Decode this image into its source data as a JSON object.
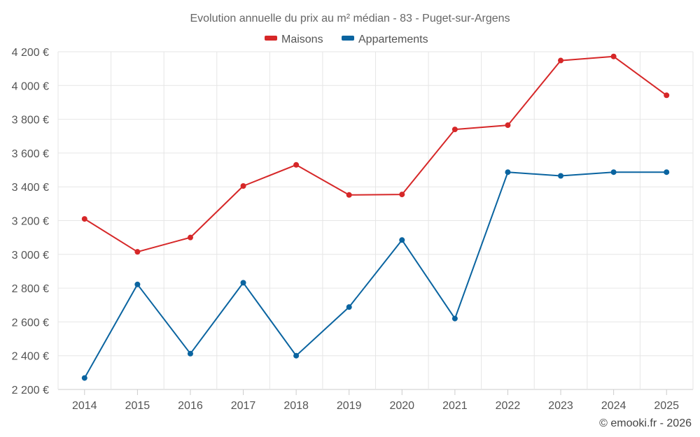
{
  "chart_data": {
    "type": "line",
    "title": "Evolution annuelle du prix au m² médian - 83 - Puget-sur-Argens",
    "xlabel": "",
    "ylabel": "",
    "categories": [
      "2014",
      "2015",
      "2016",
      "2017",
      "2018",
      "2019",
      "2020",
      "2021",
      "2022",
      "2023",
      "2024",
      "2025"
    ],
    "ylim": [
      2200,
      4200
    ],
    "yticks": [
      2200,
      2400,
      2600,
      2800,
      3000,
      3200,
      3400,
      3600,
      3800,
      4000,
      4200
    ],
    "ytick_labels": [
      "2 200 €",
      "2 400 €",
      "2 600 €",
      "2 800 €",
      "3 000 €",
      "3 200 €",
      "3 400 €",
      "3 600 €",
      "3 800 €",
      "4 000 €",
      "4 200 €"
    ],
    "grid": true,
    "legend_position": "top-center",
    "series": [
      {
        "name": "Maisons",
        "color": "#d62728",
        "values": [
          3210,
          3015,
          3100,
          3405,
          3530,
          3352,
          3355,
          3740,
          3765,
          4148,
          4172,
          3942
        ]
      },
      {
        "name": "Appartements",
        "color": "#0a64a0",
        "values": [
          2268,
          2822,
          2412,
          2832,
          2400,
          2688,
          3085,
          2620,
          3487,
          3465,
          3487,
          3487
        ]
      }
    ],
    "credit": "© emooki.fr - 2026"
  }
}
